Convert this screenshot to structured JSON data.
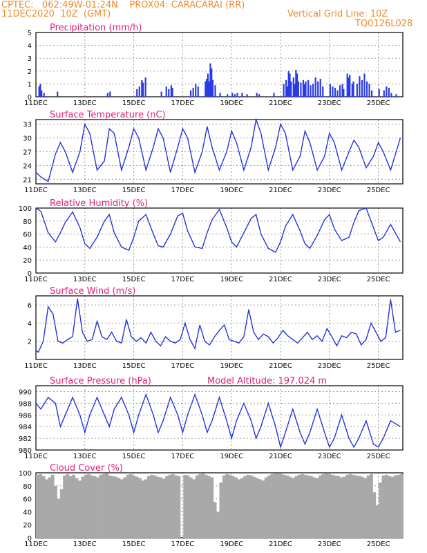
{
  "header": {
    "line1": "CPTEC:   062:49W-01:24N    PROX04: CARACARAI (RR)",
    "line2_left": "11DEC2020  10Z  (GMT)",
    "line2_right": "Vertical Grid Line: 10Z",
    "line3_right": "TQ0126L028"
  },
  "colors": {
    "header": "#ee8a2a",
    "title": "#e0207a",
    "line": "#2233dd",
    "bar": "#2a3be6",
    "cloud": "#a9a9a9",
    "grid": "#9a9a9a"
  },
  "x_labels": [
    "11DEC",
    "13DEC",
    "15DEC",
    "17DEC",
    "19DEC",
    "21DEC",
    "23DEC",
    "25DEC"
  ],
  "chart_data": [
    {
      "type": "bar",
      "title": "Precipitation (mm/h)",
      "ylim": [
        0,
        5
      ],
      "yticks": [
        0,
        1,
        2,
        3,
        4,
        5
      ],
      "x_unit": "days since 11DEC2020 10Z",
      "bars": [
        [
          0.1,
          0.8
        ],
        [
          0.15,
          1.0
        ],
        [
          0.2,
          0.5
        ],
        [
          0.3,
          0.3
        ],
        [
          0.85,
          0.4
        ],
        [
          2.9,
          0.3
        ],
        [
          3.0,
          0.4
        ],
        [
          4.1,
          0.6
        ],
        [
          4.2,
          0.8
        ],
        [
          4.3,
          1.3
        ],
        [
          4.35,
          1.1
        ],
        [
          4.45,
          1.5
        ],
        [
          5.1,
          0.4
        ],
        [
          5.3,
          0.8
        ],
        [
          5.4,
          0.6
        ],
        [
          5.5,
          0.9
        ],
        [
          5.55,
          0.7
        ],
        [
          6.3,
          0.5
        ],
        [
          6.4,
          0.7
        ],
        [
          6.5,
          1.0
        ],
        [
          6.6,
          0.8
        ],
        [
          6.9,
          1.2
        ],
        [
          6.95,
          1.4
        ],
        [
          7.0,
          1.8
        ],
        [
          7.05,
          1.2
        ],
        [
          7.1,
          2.6
        ],
        [
          7.15,
          2.2
        ],
        [
          7.2,
          1.3
        ],
        [
          7.3,
          0.9
        ],
        [
          7.5,
          0.3
        ],
        [
          7.8,
          0.2
        ],
        [
          8.0,
          0.3
        ],
        [
          8.1,
          0.2
        ],
        [
          8.2,
          0.3
        ],
        [
          8.4,
          0.3
        ],
        [
          8.6,
          0.2
        ],
        [
          9.0,
          0.3
        ],
        [
          9.1,
          0.2
        ],
        [
          9.7,
          0.3
        ],
        [
          10.1,
          1.0
        ],
        [
          10.2,
          1.3
        ],
        [
          10.25,
          0.8
        ],
        [
          10.3,
          2.0
        ],
        [
          10.35,
          1.8
        ],
        [
          10.4,
          1.2
        ],
        [
          10.5,
          1.5
        ],
        [
          10.55,
          1.0
        ],
        [
          10.6,
          2.1
        ],
        [
          10.65,
          1.8
        ],
        [
          10.7,
          1.2
        ],
        [
          10.8,
          1.1
        ],
        [
          10.9,
          1.3
        ],
        [
          10.95,
          1.0
        ],
        [
          11.0,
          1.2
        ],
        [
          11.1,
          1.3
        ],
        [
          11.2,
          0.9
        ],
        [
          11.3,
          1.0
        ],
        [
          11.4,
          1.5
        ],
        [
          11.5,
          1.2
        ],
        [
          11.6,
          1.4
        ],
        [
          11.7,
          0.8
        ],
        [
          12.0,
          1.0
        ],
        [
          12.1,
          0.8
        ],
        [
          12.2,
          0.7
        ],
        [
          12.3,
          0.5
        ],
        [
          12.4,
          0.9
        ],
        [
          12.5,
          1.0
        ],
        [
          12.55,
          0.6
        ],
        [
          12.7,
          1.8
        ],
        [
          12.75,
          1.5
        ],
        [
          12.8,
          1.7
        ],
        [
          12.9,
          1.0
        ],
        [
          12.95,
          1.2
        ],
        [
          13.1,
          1.0
        ],
        [
          13.2,
          1.6
        ],
        [
          13.3,
          1.3
        ],
        [
          13.4,
          1.8
        ],
        [
          13.5,
          1.2
        ],
        [
          13.6,
          1.0
        ],
        [
          13.7,
          0.5
        ],
        [
          14.0,
          0.6
        ],
        [
          14.2,
          0.5
        ],
        [
          14.3,
          0.8
        ],
        [
          14.4,
          0.7
        ],
        [
          14.5,
          0.3
        ],
        [
          14.7,
          0.2
        ]
      ]
    },
    {
      "type": "line",
      "title": "Surface Temperature (nC)",
      "ylim": [
        20,
        34
      ],
      "yticks": [
        21,
        24,
        27,
        30,
        33
      ],
      "x": [
        0,
        0.2,
        0.5,
        0.8,
        1.0,
        1.2,
        1.5,
        1.8,
        2.0,
        2.2,
        2.5,
        2.8,
        3.0,
        3.2,
        3.5,
        3.8,
        4.0,
        4.2,
        4.5,
        4.8,
        5.0,
        5.2,
        5.5,
        5.8,
        6.0,
        6.2,
        6.5,
        6.8,
        7.0,
        7.2,
        7.5,
        7.8,
        8.0,
        8.2,
        8.5,
        8.8,
        9.0,
        9.2,
        9.5,
        9.8,
        10.0,
        10.2,
        10.5,
        10.8,
        11.0,
        11.2,
        11.5,
        11.8,
        12.0,
        12.2,
        12.5,
        12.8,
        13.0,
        13.2,
        13.5,
        13.8,
        14.0,
        14.2,
        14.5,
        14.9
      ],
      "y": [
        22.5,
        21.5,
        20.5,
        26.5,
        29,
        27,
        22.5,
        27,
        33,
        31,
        23,
        25,
        32,
        31,
        23,
        28,
        32,
        30,
        23,
        28,
        32,
        30,
        22.5,
        28,
        32,
        30,
        22.5,
        27,
        32.5,
        28,
        23,
        27,
        31.5,
        29,
        23,
        28,
        34,
        31,
        23,
        28,
        33,
        31,
        23,
        26,
        31.5,
        29,
        23,
        26,
        31,
        29,
        23,
        27,
        29.5,
        28,
        23.5,
        26,
        29,
        27,
        23,
        30
      ]
    },
    {
      "type": "line",
      "title": "Relative Humidity (%)",
      "ylim": [
        0,
        100
      ],
      "yticks": [
        0,
        20,
        40,
        60,
        80,
        100
      ],
      "x": [
        0,
        0.2,
        0.5,
        0.8,
        1.0,
        1.2,
        1.5,
        1.8,
        2.0,
        2.2,
        2.5,
        2.8,
        3.0,
        3.2,
        3.5,
        3.8,
        4.0,
        4.2,
        4.5,
        4.8,
        5.0,
        5.2,
        5.5,
        5.8,
        6.0,
        6.2,
        6.5,
        6.8,
        7.0,
        7.2,
        7.5,
        7.8,
        8.0,
        8.2,
        8.5,
        8.8,
        9.0,
        9.2,
        9.5,
        9.8,
        10.0,
        10.2,
        10.5,
        10.8,
        11.0,
        11.2,
        11.5,
        11.8,
        12.0,
        12.2,
        12.5,
        12.8,
        13.0,
        13.2,
        13.5,
        13.8,
        14.0,
        14.2,
        14.5,
        14.9
      ],
      "y": [
        100,
        95,
        62,
        48,
        62,
        78,
        94,
        70,
        45,
        38,
        55,
        80,
        90,
        62,
        40,
        35,
        55,
        80,
        90,
        60,
        42,
        40,
        60,
        88,
        92,
        65,
        40,
        38,
        62,
        82,
        98,
        70,
        48,
        40,
        62,
        84,
        90,
        60,
        38,
        32,
        48,
        72,
        90,
        65,
        45,
        38,
        58,
        82,
        90,
        68,
        50,
        55,
        78,
        96,
        100,
        70,
        50,
        55,
        75,
        48
      ]
    },
    {
      "type": "line",
      "title": "Surface Wind (m/s)",
      "ylim": [
        0,
        7
      ],
      "yticks": [
        2,
        4,
        6
      ],
      "x": [
        0,
        0.1,
        0.3,
        0.5,
        0.7,
        0.9,
        1.1,
        1.3,
        1.5,
        1.7,
        1.9,
        2.1,
        2.3,
        2.5,
        2.7,
        2.9,
        3.1,
        3.3,
        3.5,
        3.7,
        3.9,
        4.1,
        4.3,
        4.5,
        4.7,
        4.9,
        5.1,
        5.3,
        5.5,
        5.7,
        5.9,
        6.1,
        6.3,
        6.5,
        6.7,
        6.9,
        7.1,
        7.3,
        7.5,
        7.7,
        7.9,
        8.1,
        8.3,
        8.5,
        8.7,
        8.9,
        9.1,
        9.3,
        9.5,
        9.7,
        9.9,
        10.1,
        10.3,
        10.5,
        10.7,
        10.9,
        11.1,
        11.3,
        11.5,
        11.7,
        11.9,
        12.1,
        12.3,
        12.5,
        12.7,
        12.9,
        13.1,
        13.3,
        13.5,
        13.7,
        13.9,
        14.1,
        14.3,
        14.5,
        14.7,
        14.9
      ],
      "y": [
        1.0,
        0.8,
        2.0,
        5.8,
        5.0,
        2.0,
        1.8,
        2.2,
        2.5,
        6.7,
        3.0,
        2.0,
        2.2,
        4.2,
        2.5,
        2.2,
        3.0,
        2.0,
        1.8,
        4.4,
        2.5,
        2.0,
        2.4,
        1.8,
        3.0,
        2.0,
        1.5,
        2.5,
        2.0,
        1.8,
        2.2,
        4.0,
        2.2,
        1.2,
        3.8,
        2.0,
        1.6,
        2.5,
        3.2,
        3.8,
        2.2,
        2.0,
        1.8,
        2.5,
        5.5,
        3.0,
        2.2,
        2.8,
        2.5,
        1.8,
        2.4,
        3.2,
        2.6,
        2.2,
        1.8,
        2.4,
        3.0,
        2.2,
        2.6,
        2.0,
        3.4,
        2.5,
        1.5,
        2.6,
        2.4,
        3.0,
        2.8,
        1.6,
        2.2,
        4.0,
        3.0,
        2.0,
        2.4,
        6.6,
        3.0,
        3.2
      ]
    },
    {
      "type": "line",
      "title": "Surface Pressure (hPa)",
      "subtitle": "Model Altitude: 197.024  m",
      "ylim": [
        980,
        991
      ],
      "yticks": [
        980,
        982,
        984,
        986,
        988,
        990
      ],
      "x": [
        0,
        0.2,
        0.5,
        0.8,
        1.0,
        1.2,
        1.5,
        1.8,
        2.0,
        2.2,
        2.5,
        2.8,
        3.0,
        3.2,
        3.5,
        3.8,
        4.0,
        4.2,
        4.5,
        4.8,
        5.0,
        5.2,
        5.5,
        5.8,
        6.0,
        6.2,
        6.5,
        6.8,
        7.0,
        7.2,
        7.5,
        7.8,
        8.0,
        8.2,
        8.5,
        8.8,
        9.0,
        9.2,
        9.5,
        9.8,
        10.0,
        10.2,
        10.5,
        10.8,
        11.0,
        11.2,
        11.5,
        11.8,
        12.0,
        12.2,
        12.5,
        12.8,
        13.0,
        13.2,
        13.5,
        13.8,
        14.0,
        14.2,
        14.5,
        14.9
      ],
      "y": [
        988,
        987,
        989,
        988,
        984,
        986,
        989,
        986,
        983,
        986,
        989,
        986,
        984,
        987,
        989,
        986,
        983,
        986,
        989.5,
        986,
        983,
        985,
        989,
        986,
        983,
        986,
        989.5,
        986,
        983,
        985,
        989,
        985,
        982,
        985,
        988,
        985,
        982,
        984,
        988,
        984,
        980.5,
        983,
        987,
        983,
        981,
        983,
        987,
        983,
        980.5,
        982,
        986,
        982,
        980.5,
        982,
        985,
        981,
        980.5,
        982,
        985,
        984
      ]
    },
    {
      "type": "bar",
      "title": "Cloud Cover (%)",
      "ylim": [
        0,
        100
      ],
      "yticks": [
        0,
        20,
        40,
        60,
        80,
        100
      ],
      "x_step_days": 0.125,
      "values": [
        97,
        98,
        95,
        90,
        93,
        97,
        80,
        60,
        75,
        96,
        98,
        95,
        97,
        92,
        88,
        94,
        97,
        98,
        96,
        95,
        93,
        97,
        98,
        99,
        96,
        95,
        94,
        92,
        90,
        93,
        97,
        98,
        96,
        94,
        92,
        88,
        90,
        95,
        97,
        96,
        94,
        93,
        91,
        95,
        97,
        98,
        96,
        95,
        0,
        97,
        96,
        93,
        90,
        96,
        98,
        99,
        97,
        95,
        93,
        55,
        40,
        85,
        96,
        98,
        97,
        95,
        93,
        90,
        92,
        95,
        97,
        96,
        94,
        92,
        90,
        88,
        93,
        96,
        98,
        99,
        99,
        98,
        97,
        96,
        94,
        92,
        95,
        97,
        98,
        97,
        96,
        95,
        93,
        92,
        96,
        98,
        99,
        98,
        97,
        96,
        95,
        93,
        94,
        97,
        98,
        97,
        96,
        95,
        94,
        92,
        96,
        98,
        70,
        50,
        85,
        96,
        97,
        95,
        94,
        96,
        97,
        98
      ]
    }
  ]
}
